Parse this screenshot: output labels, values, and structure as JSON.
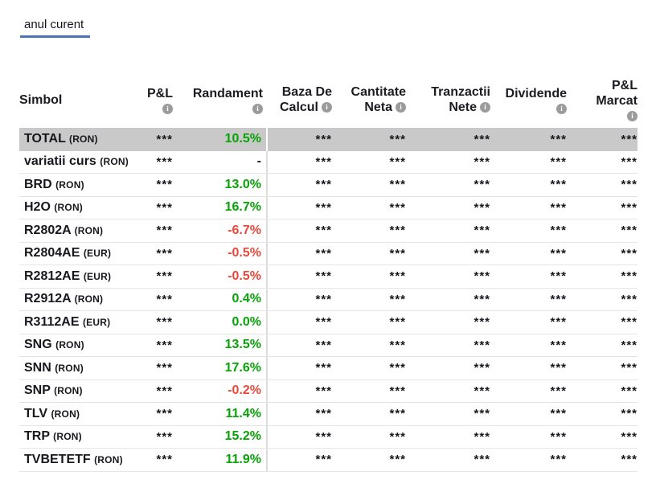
{
  "tab": {
    "label": "anul curent"
  },
  "colors": {
    "positive": "#07a307",
    "negative": "#e8493c",
    "accent_underline": "#4a77b4",
    "total_row_bg": "#c9c9c9",
    "info_icon_bg": "#9b9b9b"
  },
  "table": {
    "info_glyph": "i",
    "columns": {
      "simbol": {
        "line1": "Simbol"
      },
      "pnl": {
        "line1": "P&L"
      },
      "randament": {
        "line1": "Randament"
      },
      "baza": {
        "line1": "Baza De",
        "line2": "Calcul"
      },
      "cantitate": {
        "line1": "Cantitate",
        "line2": "Neta"
      },
      "tranzactii": {
        "line1": "Tranzactii",
        "line2": "Nete"
      },
      "dividende": {
        "line1": "Dividende"
      },
      "pnl_marcat": {
        "line1": "P&L",
        "line2": "Marcat"
      }
    },
    "rows": [
      {
        "symbol": "TOTAL",
        "currency": "(RON)",
        "pnl": "***",
        "randament": "10.5%",
        "trend": "up",
        "baza": "***",
        "cantitate": "***",
        "tranzactii": "***",
        "dividende": "***",
        "pnl_marcat": "***",
        "is_total": true
      },
      {
        "symbol": "variatii curs",
        "currency": "(RON)",
        "pnl": "***",
        "randament": "-",
        "trend": "none",
        "baza": "***",
        "cantitate": "***",
        "tranzactii": "***",
        "dividende": "***",
        "pnl_marcat": "***",
        "is_total": false
      },
      {
        "symbol": "BRD",
        "currency": "(RON)",
        "pnl": "***",
        "randament": "13.0%",
        "trend": "up",
        "baza": "***",
        "cantitate": "***",
        "tranzactii": "***",
        "dividende": "***",
        "pnl_marcat": "***",
        "is_total": false
      },
      {
        "symbol": "H2O",
        "currency": "(RON)",
        "pnl": "***",
        "randament": "16.7%",
        "trend": "up",
        "baza": "***",
        "cantitate": "***",
        "tranzactii": "***",
        "dividende": "***",
        "pnl_marcat": "***",
        "is_total": false
      },
      {
        "symbol": "R2802A",
        "currency": "(RON)",
        "pnl": "***",
        "randament": "-6.7%",
        "trend": "down",
        "baza": "***",
        "cantitate": "***",
        "tranzactii": "***",
        "dividende": "***",
        "pnl_marcat": "***",
        "is_total": false
      },
      {
        "symbol": "R2804AE",
        "currency": "(EUR)",
        "pnl": "***",
        "randament": "-0.5%",
        "trend": "down",
        "baza": "***",
        "cantitate": "***",
        "tranzactii": "***",
        "dividende": "***",
        "pnl_marcat": "***",
        "is_total": false
      },
      {
        "symbol": "R2812AE",
        "currency": "(EUR)",
        "pnl": "***",
        "randament": "-0.5%",
        "trend": "down",
        "baza": "***",
        "cantitate": "***",
        "tranzactii": "***",
        "dividende": "***",
        "pnl_marcat": "***",
        "is_total": false
      },
      {
        "symbol": "R2912A",
        "currency": "(RON)",
        "pnl": "***",
        "randament": "0.4%",
        "trend": "up",
        "baza": "***",
        "cantitate": "***",
        "tranzactii": "***",
        "dividende": "***",
        "pnl_marcat": "***",
        "is_total": false
      },
      {
        "symbol": "R3112AE",
        "currency": "(EUR)",
        "pnl": "***",
        "randament": "0.0%",
        "trend": "up",
        "baza": "***",
        "cantitate": "***",
        "tranzactii": "***",
        "dividende": "***",
        "pnl_marcat": "***",
        "is_total": false
      },
      {
        "symbol": "SNG",
        "currency": "(RON)",
        "pnl": "***",
        "randament": "13.5%",
        "trend": "up",
        "baza": "***",
        "cantitate": "***",
        "tranzactii": "***",
        "dividende": "***",
        "pnl_marcat": "***",
        "is_total": false
      },
      {
        "symbol": "SNN",
        "currency": "(RON)",
        "pnl": "***",
        "randament": "17.6%",
        "trend": "up",
        "baza": "***",
        "cantitate": "***",
        "tranzactii": "***",
        "dividende": "***",
        "pnl_marcat": "***",
        "is_total": false
      },
      {
        "symbol": "SNP",
        "currency": "(RON)",
        "pnl": "***",
        "randament": "-0.2%",
        "trend": "down",
        "baza": "***",
        "cantitate": "***",
        "tranzactii": "***",
        "dividende": "***",
        "pnl_marcat": "***",
        "is_total": false
      },
      {
        "symbol": "TLV",
        "currency": "(RON)",
        "pnl": "***",
        "randament": "11.4%",
        "trend": "up",
        "baza": "***",
        "cantitate": "***",
        "tranzactii": "***",
        "dividende": "***",
        "pnl_marcat": "***",
        "is_total": false
      },
      {
        "symbol": "TRP",
        "currency": "(RON)",
        "pnl": "***",
        "randament": "15.2%",
        "trend": "up",
        "baza": "***",
        "cantitate": "***",
        "tranzactii": "***",
        "dividende": "***",
        "pnl_marcat": "***",
        "is_total": false
      },
      {
        "symbol": "TVBETETF",
        "currency": "(RON)",
        "pnl": "***",
        "randament": "11.9%",
        "trend": "up",
        "baza": "***",
        "cantitate": "***",
        "tranzactii": "***",
        "dividende": "***",
        "pnl_marcat": "***",
        "is_total": false
      }
    ]
  }
}
